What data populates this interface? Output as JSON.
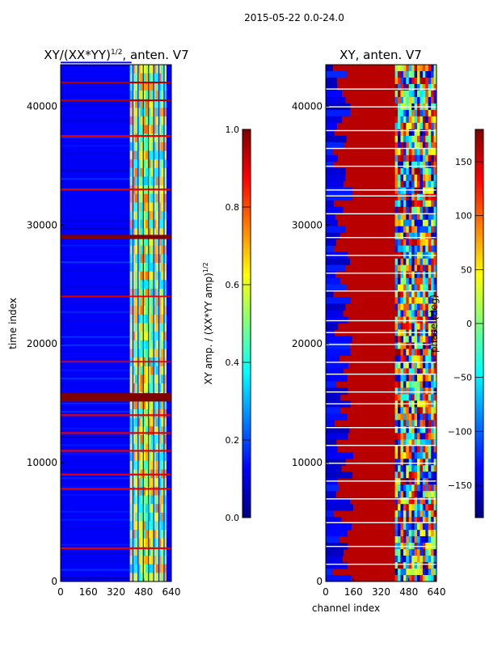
{
  "suptitle": "2015-05-22 0.0-24.0",
  "colormap": [
    "#00007f",
    "#0000ff",
    "#007fff",
    "#00ffff",
    "#7fff7f",
    "#ffff00",
    "#ff7f00",
    "#ff0000",
    "#7f0000"
  ],
  "chart_data": [
    {
      "type": "heatmap",
      "title": "XY/(XX*YY)^{1/2}, anten. V7",
      "title_main": "XY/(XX*YY)",
      "title_sup": "1/2",
      "title_tail": ", anten. V7",
      "xlabel": "",
      "ylabel": "time index",
      "xlim": [
        0,
        640
      ],
      "ylim": [
        0,
        43500
      ],
      "xticks": [
        0,
        160,
        320,
        480,
        640
      ],
      "yticks": [
        0,
        10000,
        20000,
        30000,
        40000
      ],
      "xtick_labels": [
        "0",
        "160",
        "320",
        "480",
        "640"
      ],
      "ytick_labels": [
        "0",
        "10000",
        "20000",
        "30000",
        "40000"
      ],
      "colorbar": {
        "label": "XY amp. / (XX*YY amp)^{1/2}",
        "label_main": "XY amp. / (XX*YY amp)",
        "label_sup": "1/2",
        "vmin": 0.0,
        "vmax": 1.0,
        "ticks": [
          0.0,
          0.2,
          0.4,
          0.6,
          0.8,
          1.0
        ],
        "tick_labels": [
          "0.0",
          "0.2",
          "0.4",
          "0.6",
          "0.8",
          "1.0"
        ]
      },
      "background_value": 0.12,
      "bright_channel_range": [
        400,
        610
      ],
      "bright_columns": [
        415,
        445,
        475,
        505,
        535,
        565,
        595
      ],
      "bright_value": 0.55,
      "flagged_rows": [
        {
          "t": 42000,
          "w": 150,
          "v": 0.95
        },
        {
          "t": 40500,
          "w": 150,
          "v": 0.95
        },
        {
          "t": 37500,
          "w": 150,
          "v": 0.9
        },
        {
          "t": 33000,
          "w": 150,
          "v": 0.9
        },
        {
          "t": 29000,
          "w": 350,
          "v": 1.0
        },
        {
          "t": 24000,
          "w": 120,
          "v": 0.9
        },
        {
          "t": 18500,
          "w": 120,
          "v": 0.9
        },
        {
          "t": 15500,
          "w": 700,
          "v": 1.0
        },
        {
          "t": 14000,
          "w": 150,
          "v": 0.9
        },
        {
          "t": 12500,
          "w": 150,
          "v": 0.9
        },
        {
          "t": 11000,
          "w": 150,
          "v": 0.9
        },
        {
          "t": 9000,
          "w": 150,
          "v": 0.9
        },
        {
          "t": 7800,
          "w": 150,
          "v": 0.9
        },
        {
          "t": 2800,
          "w": 150,
          "v": 0.9
        }
      ]
    },
    {
      "type": "heatmap",
      "title": "XY, anten. V7",
      "xlabel": "channel index",
      "ylabel": "",
      "xlim": [
        0,
        640
      ],
      "ylim": [
        0,
        43500
      ],
      "xticks": [
        0,
        160,
        320,
        480,
        640
      ],
      "yticks": [
        0,
        10000,
        20000,
        30000,
        40000
      ],
      "xtick_labels": [
        "0",
        "160",
        "320",
        "480",
        "640"
      ],
      "ytick_labels": [
        "0",
        "10000",
        "20000",
        "30000",
        "40000"
      ],
      "colorbar": {
        "label": "phase (deg)",
        "vmin": -180,
        "vmax": 180,
        "ticks": [
          -150,
          -100,
          -50,
          0,
          50,
          100,
          150
        ],
        "tick_labels": [
          "−150",
          "−100",
          "−50",
          "0",
          "50",
          "100",
          "150"
        ]
      },
      "low_channel_value": -160,
      "high_channel_value": 160,
      "transition_channel": 100,
      "mixed_channel_range": [
        400,
        640
      ],
      "white_rows": [
        41500,
        40000,
        38000,
        36500,
        35000,
        33000,
        32500,
        31000,
        29000,
        27500,
        26000,
        24500,
        22000,
        21000,
        20000,
        18500,
        17500,
        16000,
        15000,
        13000,
        11500,
        10000,
        8500,
        7000,
        5000,
        3000,
        1500
      ]
    }
  ]
}
